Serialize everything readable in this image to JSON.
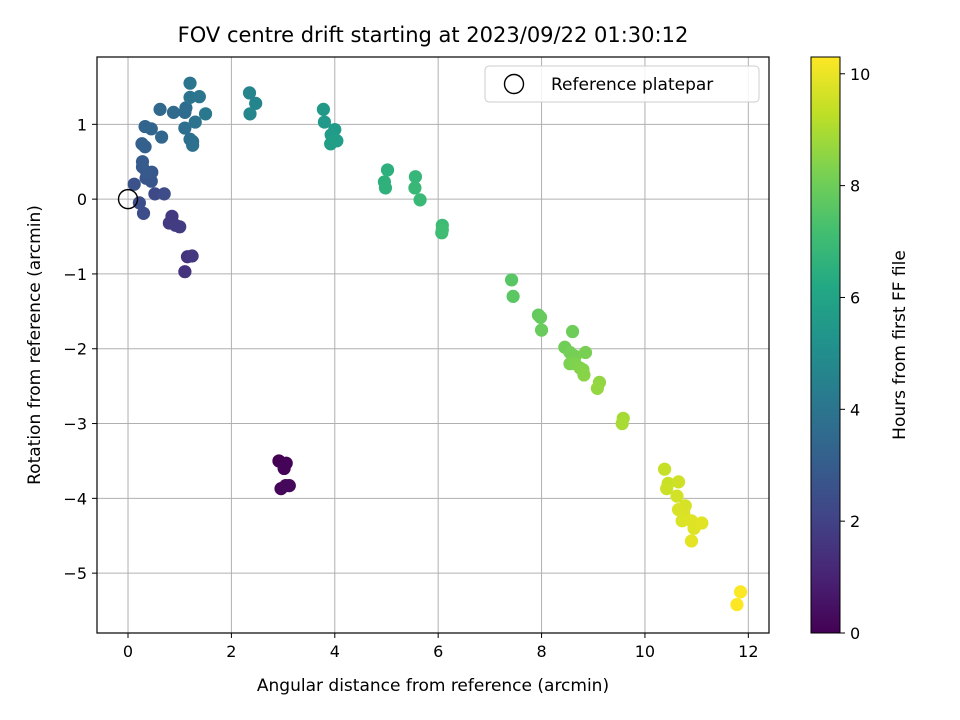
{
  "chart_data": {
    "type": "scatter",
    "title": "FOV centre drift starting at 2023/09/22 01:30:12",
    "xlabel": "Angular distance from reference (arcmin)",
    "ylabel": "Rotation from reference (arcmin)",
    "xlim": [
      -0.6,
      12.4
    ],
    "ylim": [
      -5.8,
      1.9
    ],
    "xticks": [
      0,
      2,
      4,
      6,
      8,
      10,
      12
    ],
    "yticks": [
      -5,
      -4,
      -3,
      -2,
      -1,
      0,
      1
    ],
    "grid": true,
    "legend": {
      "entries": [
        {
          "label": "Reference platepar",
          "marker": "open-circle"
        }
      ],
      "placement": "upper right"
    },
    "reference_point": {
      "x": 0,
      "y": 0
    },
    "colorbar": {
      "label": "Hours from first FF file",
      "colormap": "viridis",
      "range": [
        0,
        10.3
      ],
      "ticks": [
        0,
        2,
        4,
        6,
        8,
        10
      ]
    },
    "points": [
      {
        "x": 2.92,
        "y": -3.5,
        "h": 0.0
      },
      {
        "x": 3.06,
        "y": -3.53,
        "h": 0.05
      },
      {
        "x": 3.02,
        "y": -3.6,
        "h": 0.1
      },
      {
        "x": 2.96,
        "y": -3.87,
        "h": 0.15
      },
      {
        "x": 3.05,
        "y": -3.83,
        "h": 0.2
      },
      {
        "x": 3.12,
        "y": -3.83,
        "h": 0.25
      },
      {
        "x": 1.1,
        "y": -0.97,
        "h": 1.5
      },
      {
        "x": 1.15,
        "y": -0.77,
        "h": 1.55
      },
      {
        "x": 1.24,
        "y": -0.76,
        "h": 1.6
      },
      {
        "x": 0.85,
        "y": -0.23,
        "h": 1.7
      },
      {
        "x": 0.8,
        "y": -0.32,
        "h": 1.75
      },
      {
        "x": 0.92,
        "y": -0.35,
        "h": 1.8
      },
      {
        "x": 1.0,
        "y": -0.37,
        "h": 1.85
      },
      {
        "x": 0.52,
        "y": 0.07,
        "h": 2.3
      },
      {
        "x": 0.7,
        "y": 0.07,
        "h": 2.35
      },
      {
        "x": 0.3,
        "y": -0.19,
        "h": 2.4
      },
      {
        "x": 0.22,
        "y": -0.05,
        "h": 2.45
      },
      {
        "x": 0.12,
        "y": 0.2,
        "h": 2.6
      },
      {
        "x": 0.35,
        "y": 0.28,
        "h": 2.7
      },
      {
        "x": 0.45,
        "y": 0.24,
        "h": 2.75
      },
      {
        "x": 0.46,
        "y": 0.36,
        "h": 2.8
      },
      {
        "x": 0.36,
        "y": 0.36,
        "h": 2.85
      },
      {
        "x": 0.28,
        "y": 0.43,
        "h": 2.9
      },
      {
        "x": 0.28,
        "y": 0.5,
        "h": 2.95
      },
      {
        "x": 0.27,
        "y": 0.74,
        "h": 3.1
      },
      {
        "x": 0.33,
        "y": 0.7,
        "h": 3.15
      },
      {
        "x": 0.33,
        "y": 0.97,
        "h": 3.3
      },
      {
        "x": 0.45,
        "y": 0.94,
        "h": 3.35
      },
      {
        "x": 0.65,
        "y": 0.83,
        "h": 3.4
      },
      {
        "x": 0.62,
        "y": 1.2,
        "h": 3.5
      },
      {
        "x": 0.88,
        "y": 1.16,
        "h": 3.55
      },
      {
        "x": 1.1,
        "y": 1.16,
        "h": 3.6
      },
      {
        "x": 1.12,
        "y": 1.22,
        "h": 3.65
      },
      {
        "x": 1.1,
        "y": 0.95,
        "h": 3.7
      },
      {
        "x": 1.2,
        "y": 0.8,
        "h": 3.75
      },
      {
        "x": 1.25,
        "y": 0.77,
        "h": 3.8
      },
      {
        "x": 1.25,
        "y": 0.72,
        "h": 3.85
      },
      {
        "x": 1.3,
        "y": 1.03,
        "h": 3.9
      },
      {
        "x": 1.2,
        "y": 1.36,
        "h": 3.95
      },
      {
        "x": 1.2,
        "y": 1.55,
        "h": 4.0
      },
      {
        "x": 1.38,
        "y": 1.37,
        "h": 4.05
      },
      {
        "x": 1.5,
        "y": 1.14,
        "h": 4.1
      },
      {
        "x": 2.35,
        "y": 1.42,
        "h": 4.6
      },
      {
        "x": 2.47,
        "y": 1.28,
        "h": 4.65
      },
      {
        "x": 2.36,
        "y": 1.14,
        "h": 4.7
      },
      {
        "x": 3.78,
        "y": 1.2,
        "h": 5.5
      },
      {
        "x": 3.8,
        "y": 1.03,
        "h": 5.55
      },
      {
        "x": 4.0,
        "y": 0.93,
        "h": 5.6
      },
      {
        "x": 3.93,
        "y": 0.86,
        "h": 5.65
      },
      {
        "x": 4.04,
        "y": 0.78,
        "h": 5.7
      },
      {
        "x": 3.92,
        "y": 0.74,
        "h": 5.75
      },
      {
        "x": 5.02,
        "y": 0.39,
        "h": 6.5
      },
      {
        "x": 4.96,
        "y": 0.23,
        "h": 6.55
      },
      {
        "x": 4.98,
        "y": 0.15,
        "h": 6.6
      },
      {
        "x": 5.56,
        "y": 0.3,
        "h": 6.8
      },
      {
        "x": 5.55,
        "y": 0.15,
        "h": 6.85
      },
      {
        "x": 5.65,
        "y": -0.01,
        "h": 6.9
      },
      {
        "x": 6.08,
        "y": -0.35,
        "h": 7.0
      },
      {
        "x": 6.07,
        "y": -0.45,
        "h": 7.05
      },
      {
        "x": 6.08,
        "y": -0.41,
        "h": 7.1
      },
      {
        "x": 7.42,
        "y": -1.08,
        "h": 7.6
      },
      {
        "x": 7.45,
        "y": -1.3,
        "h": 7.65
      },
      {
        "x": 7.94,
        "y": -1.55,
        "h": 7.8
      },
      {
        "x": 7.98,
        "y": -1.58,
        "h": 7.85
      },
      {
        "x": 8.0,
        "y": -1.75,
        "h": 7.9
      },
      {
        "x": 8.6,
        "y": -1.77,
        "h": 8.0
      },
      {
        "x": 8.45,
        "y": -1.98,
        "h": 8.05
      },
      {
        "x": 8.55,
        "y": -2.05,
        "h": 8.1
      },
      {
        "x": 8.65,
        "y": -2.1,
        "h": 8.15
      },
      {
        "x": 8.85,
        "y": -2.05,
        "h": 8.2
      },
      {
        "x": 8.55,
        "y": -2.2,
        "h": 8.25
      },
      {
        "x": 8.65,
        "y": -2.2,
        "h": 8.3
      },
      {
        "x": 8.75,
        "y": -2.26,
        "h": 8.35
      },
      {
        "x": 8.8,
        "y": -2.28,
        "h": 8.4
      },
      {
        "x": 8.82,
        "y": -2.35,
        "h": 8.45
      },
      {
        "x": 9.12,
        "y": -2.45,
        "h": 8.6
      },
      {
        "x": 9.08,
        "y": -2.53,
        "h": 8.65
      },
      {
        "x": 9.58,
        "y": -2.93,
        "h": 8.9
      },
      {
        "x": 9.56,
        "y": -3.0,
        "h": 8.95
      },
      {
        "x": 10.38,
        "y": -3.61,
        "h": 9.4
      },
      {
        "x": 10.45,
        "y": -3.8,
        "h": 9.45
      },
      {
        "x": 10.42,
        "y": -3.87,
        "h": 9.5
      },
      {
        "x": 10.65,
        "y": -3.78,
        "h": 9.55
      },
      {
        "x": 10.62,
        "y": -3.97,
        "h": 9.6
      },
      {
        "x": 10.78,
        "y": -4.1,
        "h": 9.65
      },
      {
        "x": 10.65,
        "y": -4.15,
        "h": 9.7
      },
      {
        "x": 10.75,
        "y": -4.2,
        "h": 9.72
      },
      {
        "x": 10.72,
        "y": -4.3,
        "h": 9.75
      },
      {
        "x": 10.9,
        "y": -4.3,
        "h": 9.8
      },
      {
        "x": 10.95,
        "y": -4.4,
        "h": 9.82
      },
      {
        "x": 11.1,
        "y": -4.33,
        "h": 9.85
      },
      {
        "x": 10.9,
        "y": -4.57,
        "h": 9.9
      },
      {
        "x": 11.85,
        "y": -5.25,
        "h": 10.25
      },
      {
        "x": 11.78,
        "y": -5.42,
        "h": 10.3
      }
    ]
  }
}
